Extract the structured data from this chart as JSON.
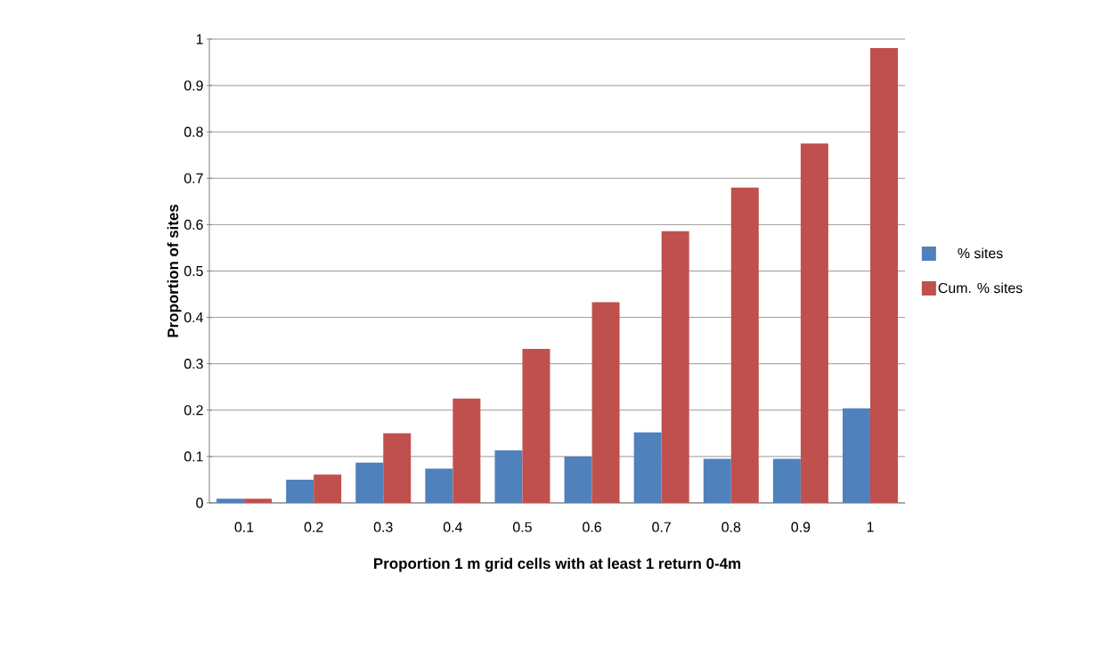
{
  "chart_data": {
    "type": "bar",
    "xlabel": "Proportion 1 m grid cells with at least 1 return 0-4m",
    "ylabel": "Proportion of sites",
    "categories": [
      "0.1",
      "0.2",
      "0.3",
      "0.4",
      "0.5",
      "0.6",
      "0.7",
      "0.8",
      "0.9",
      "1"
    ],
    "series": [
      {
        "name": "% sites",
        "color": "#4f81bd",
        "values": [
          0.009,
          0.05,
          0.087,
          0.074,
          0.113,
          0.1,
          0.152,
          0.095,
          0.095,
          0.204
        ]
      },
      {
        "name": "Cum. % sites",
        "color": "#c0504d",
        "values": [
          0.009,
          0.061,
          0.15,
          0.225,
          0.332,
          0.433,
          0.586,
          0.68,
          0.775,
          0.981
        ]
      }
    ],
    "ylim": [
      0,
      1
    ],
    "yticks": [
      0,
      0.1,
      0.2,
      0.3,
      0.4,
      0.5,
      0.6,
      0.7,
      0.8,
      0.9,
      1
    ],
    "grid": "y",
    "legend": "right"
  }
}
